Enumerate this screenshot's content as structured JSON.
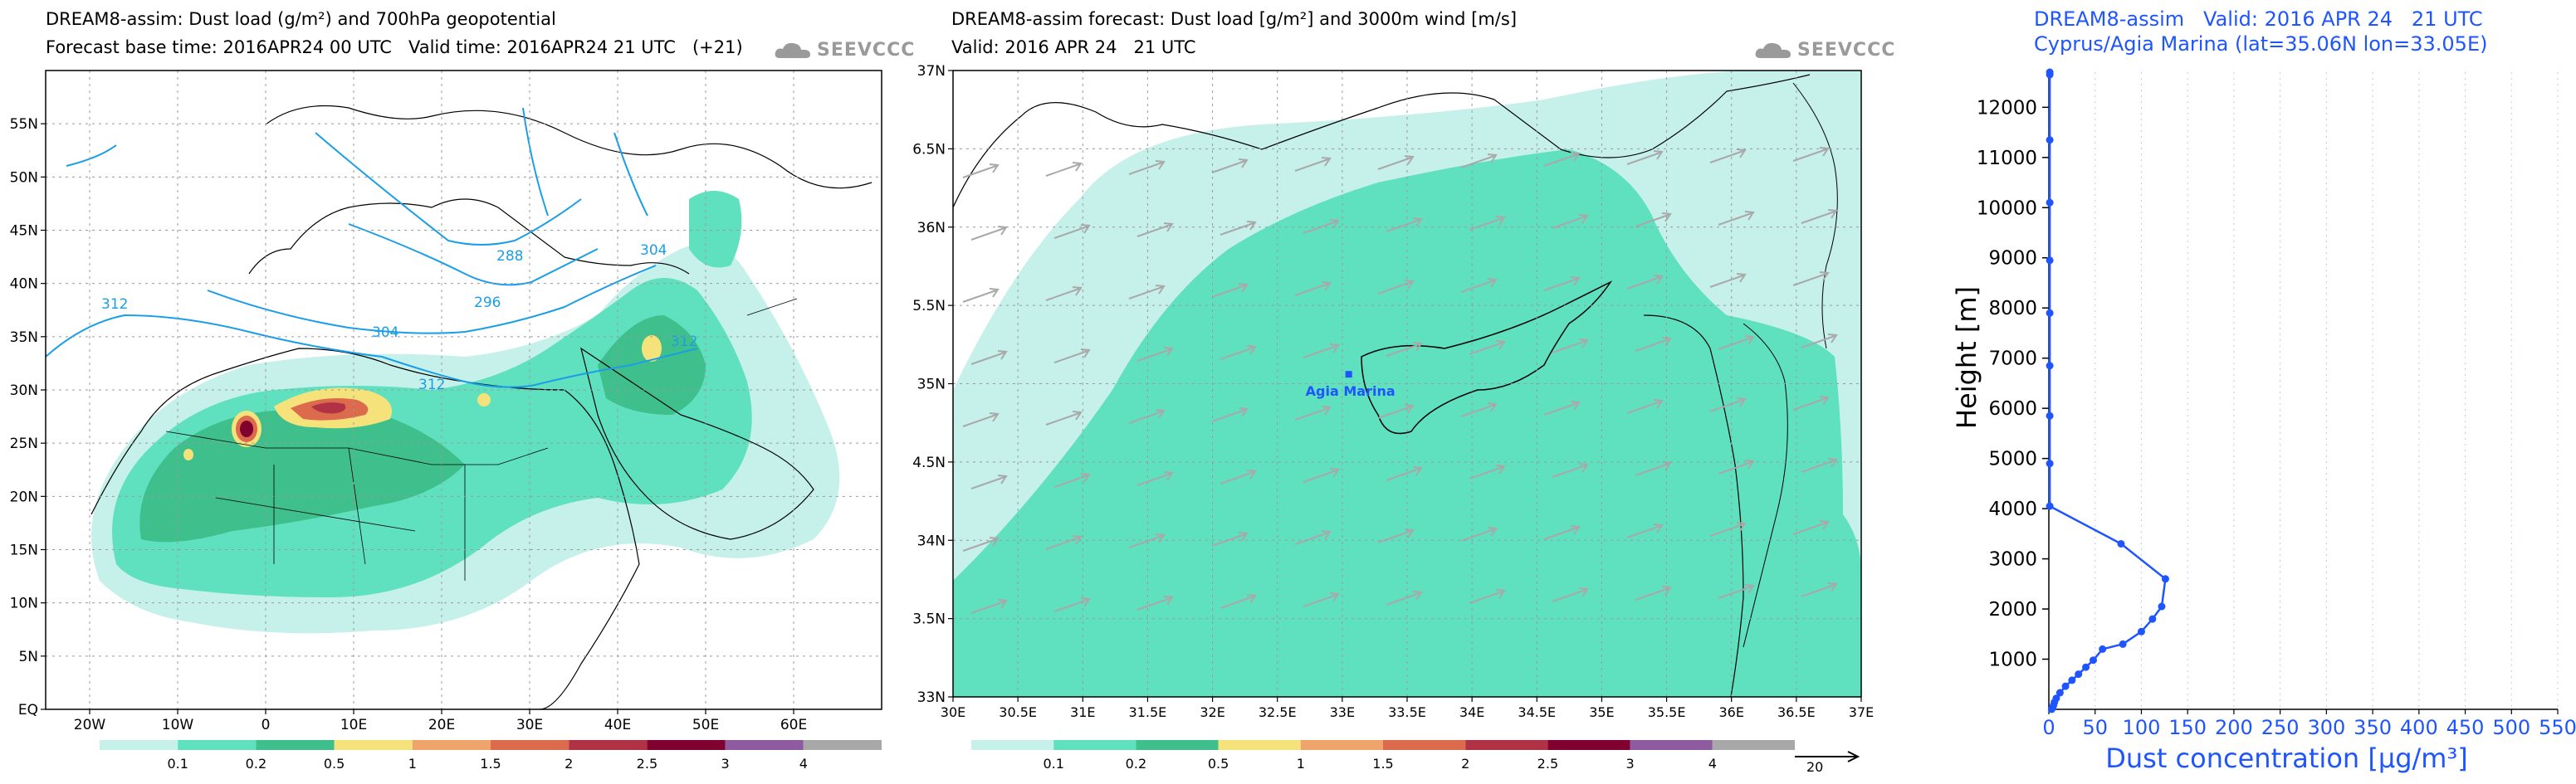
{
  "panel1": {
    "title_line1": "DREAM8-assim: Dust load (g/m²) and 700hPa geopotential",
    "title_line2": "Forecast base time: 2016APR24 00 UTC   Valid time: 2016APR24 21 UTC   (+21)",
    "logo_text": "SEEVCCC"
  },
  "panel2": {
    "title_line1": "DREAM8-assim forecast: Dust load [g/m²] and 3000m wind [m/s]",
    "title_line2": "Valid: 2016 APR 24   21 UTC",
    "logo_text": "SEEVCCC",
    "station_label": "Agia Marina",
    "wind_scale_label": "20"
  },
  "panel3": {
    "title_line1": "DREAM8-assim   Valid: 2016 APR 24   21 UTC",
    "title_line2": "Cyprus/Agia Marina (lat=35.06N lon=33.05E)"
  },
  "colors": {
    "c01": "#c6f0ea",
    "c02": "#5fe0bf",
    "c05": "#3fbf8c",
    "c1": "#f5e27a",
    "c15": "#eea46a",
    "c2": "#dc6a4c",
    "c25": "#b03244",
    "c3": "#800030",
    "c35": "#8e5aa0",
    "c4": "#a8a8a8",
    "geopotential": "#1a9ee8",
    "profile": "#1f55ff",
    "wind_arrow": "#a9a9a9"
  },
  "chart_data": [
    {
      "type": "heatmap",
      "title": "DREAM8-assim: Dust load (g/m²) and 700hPa geopotential",
      "subtitle": "Forecast base time: 2016APR24 00 UTC   Valid time: 2016APR24 21 UTC   (+21)",
      "x_tick_labels": [
        "20W",
        "10W",
        "0",
        "10E",
        "20E",
        "30E",
        "40E",
        "50E",
        "60E"
      ],
      "x_tick_values": [
        -20,
        -10,
        0,
        10,
        20,
        30,
        40,
        50,
        60
      ],
      "y_tick_labels": [
        "EQ",
        "5N",
        "10N",
        "15N",
        "20N",
        "25N",
        "30N",
        "35N",
        "40N",
        "45N",
        "50N",
        "55N"
      ],
      "y_tick_values": [
        0,
        5,
        10,
        15,
        20,
        25,
        30,
        35,
        40,
        45,
        50,
        55
      ],
      "xlim": [
        -25,
        70
      ],
      "ylim": [
        0,
        60
      ],
      "colorbar_levels": [
        "0.1",
        "0.2",
        "0.5",
        "1",
        "1.5",
        "2",
        "2.5",
        "3",
        "4"
      ],
      "contour_labels": [
        "288",
        "296",
        "304",
        "312",
        "304",
        "312",
        "312"
      ]
    },
    {
      "type": "heatmap",
      "title": "DREAM8-assim forecast: Dust load [g/m²] and 3000m wind [m/s]",
      "subtitle": "Valid: 2016 APR 24   21 UTC",
      "x_tick_labels": [
        "30E",
        "30.5E",
        "31E",
        "31.5E",
        "32E",
        "32.5E",
        "33E",
        "33.5E",
        "34E",
        "34.5E",
        "35E",
        "35.5E",
        "36E",
        "36.5E",
        "37E"
      ],
      "x_tick_values": [
        30,
        30.5,
        31,
        31.5,
        32,
        32.5,
        33,
        33.5,
        34,
        34.5,
        35,
        35.5,
        36,
        36.5,
        37
      ],
      "y_tick_labels": [
        "33N",
        "33.5N",
        "34N",
        "34.5N",
        "35N",
        "35.5N",
        "36N",
        "36.5N",
        "37N"
      ],
      "y_tick_values": [
        33,
        33.5,
        34,
        34.5,
        35,
        35.5,
        36,
        36.5,
        37
      ],
      "xlim": [
        30,
        37
      ],
      "ylim": [
        33,
        37
      ],
      "colorbar_levels": [
        "0.1",
        "0.2",
        "0.5",
        "1",
        "1.5",
        "2",
        "2.5",
        "3",
        "4"
      ],
      "station": {
        "name": "Agia Marina",
        "lon": 33.05,
        "lat": 35.06
      }
    },
    {
      "type": "line",
      "title": "DREAM8-assim   Valid: 2016 APR 24   21 UTC",
      "subtitle": "Cyprus/Agia Marina (lat=35.06N lon=33.05E)",
      "xlabel": "Dust concentration [µg/m³]",
      "ylabel": "Height [m]",
      "xlim": [
        0,
        550
      ],
      "ylim": [
        0,
        12700
      ],
      "x_tick_labels": [
        "0",
        "50",
        "100",
        "150",
        "200",
        "250",
        "300",
        "350",
        "400",
        "450",
        "500",
        "550"
      ],
      "y_tick_labels": [
        "1000",
        "2000",
        "3000",
        "4000",
        "5000",
        "6000",
        "7000",
        "8000",
        "9000",
        "10000",
        "11000",
        "12000"
      ],
      "series": [
        {
          "x": [
            3,
            4,
            5,
            6,
            8,
            12,
            18,
            25,
            32,
            40,
            48,
            58,
            80,
            100,
            112,
            122,
            126,
            78,
            1,
            1,
            1,
            1,
            1,
            1,
            1,
            1,
            1,
            1
          ],
          "y": [
            0,
            30,
            80,
            140,
            220,
            330,
            460,
            580,
            700,
            840,
            980,
            1200,
            1300,
            1550,
            1800,
            2050,
            2600,
            3300,
            4050,
            4900,
            5850,
            6850,
            7900,
            8950,
            10100,
            11350,
            12650,
            12700
          ]
        }
      ]
    }
  ]
}
